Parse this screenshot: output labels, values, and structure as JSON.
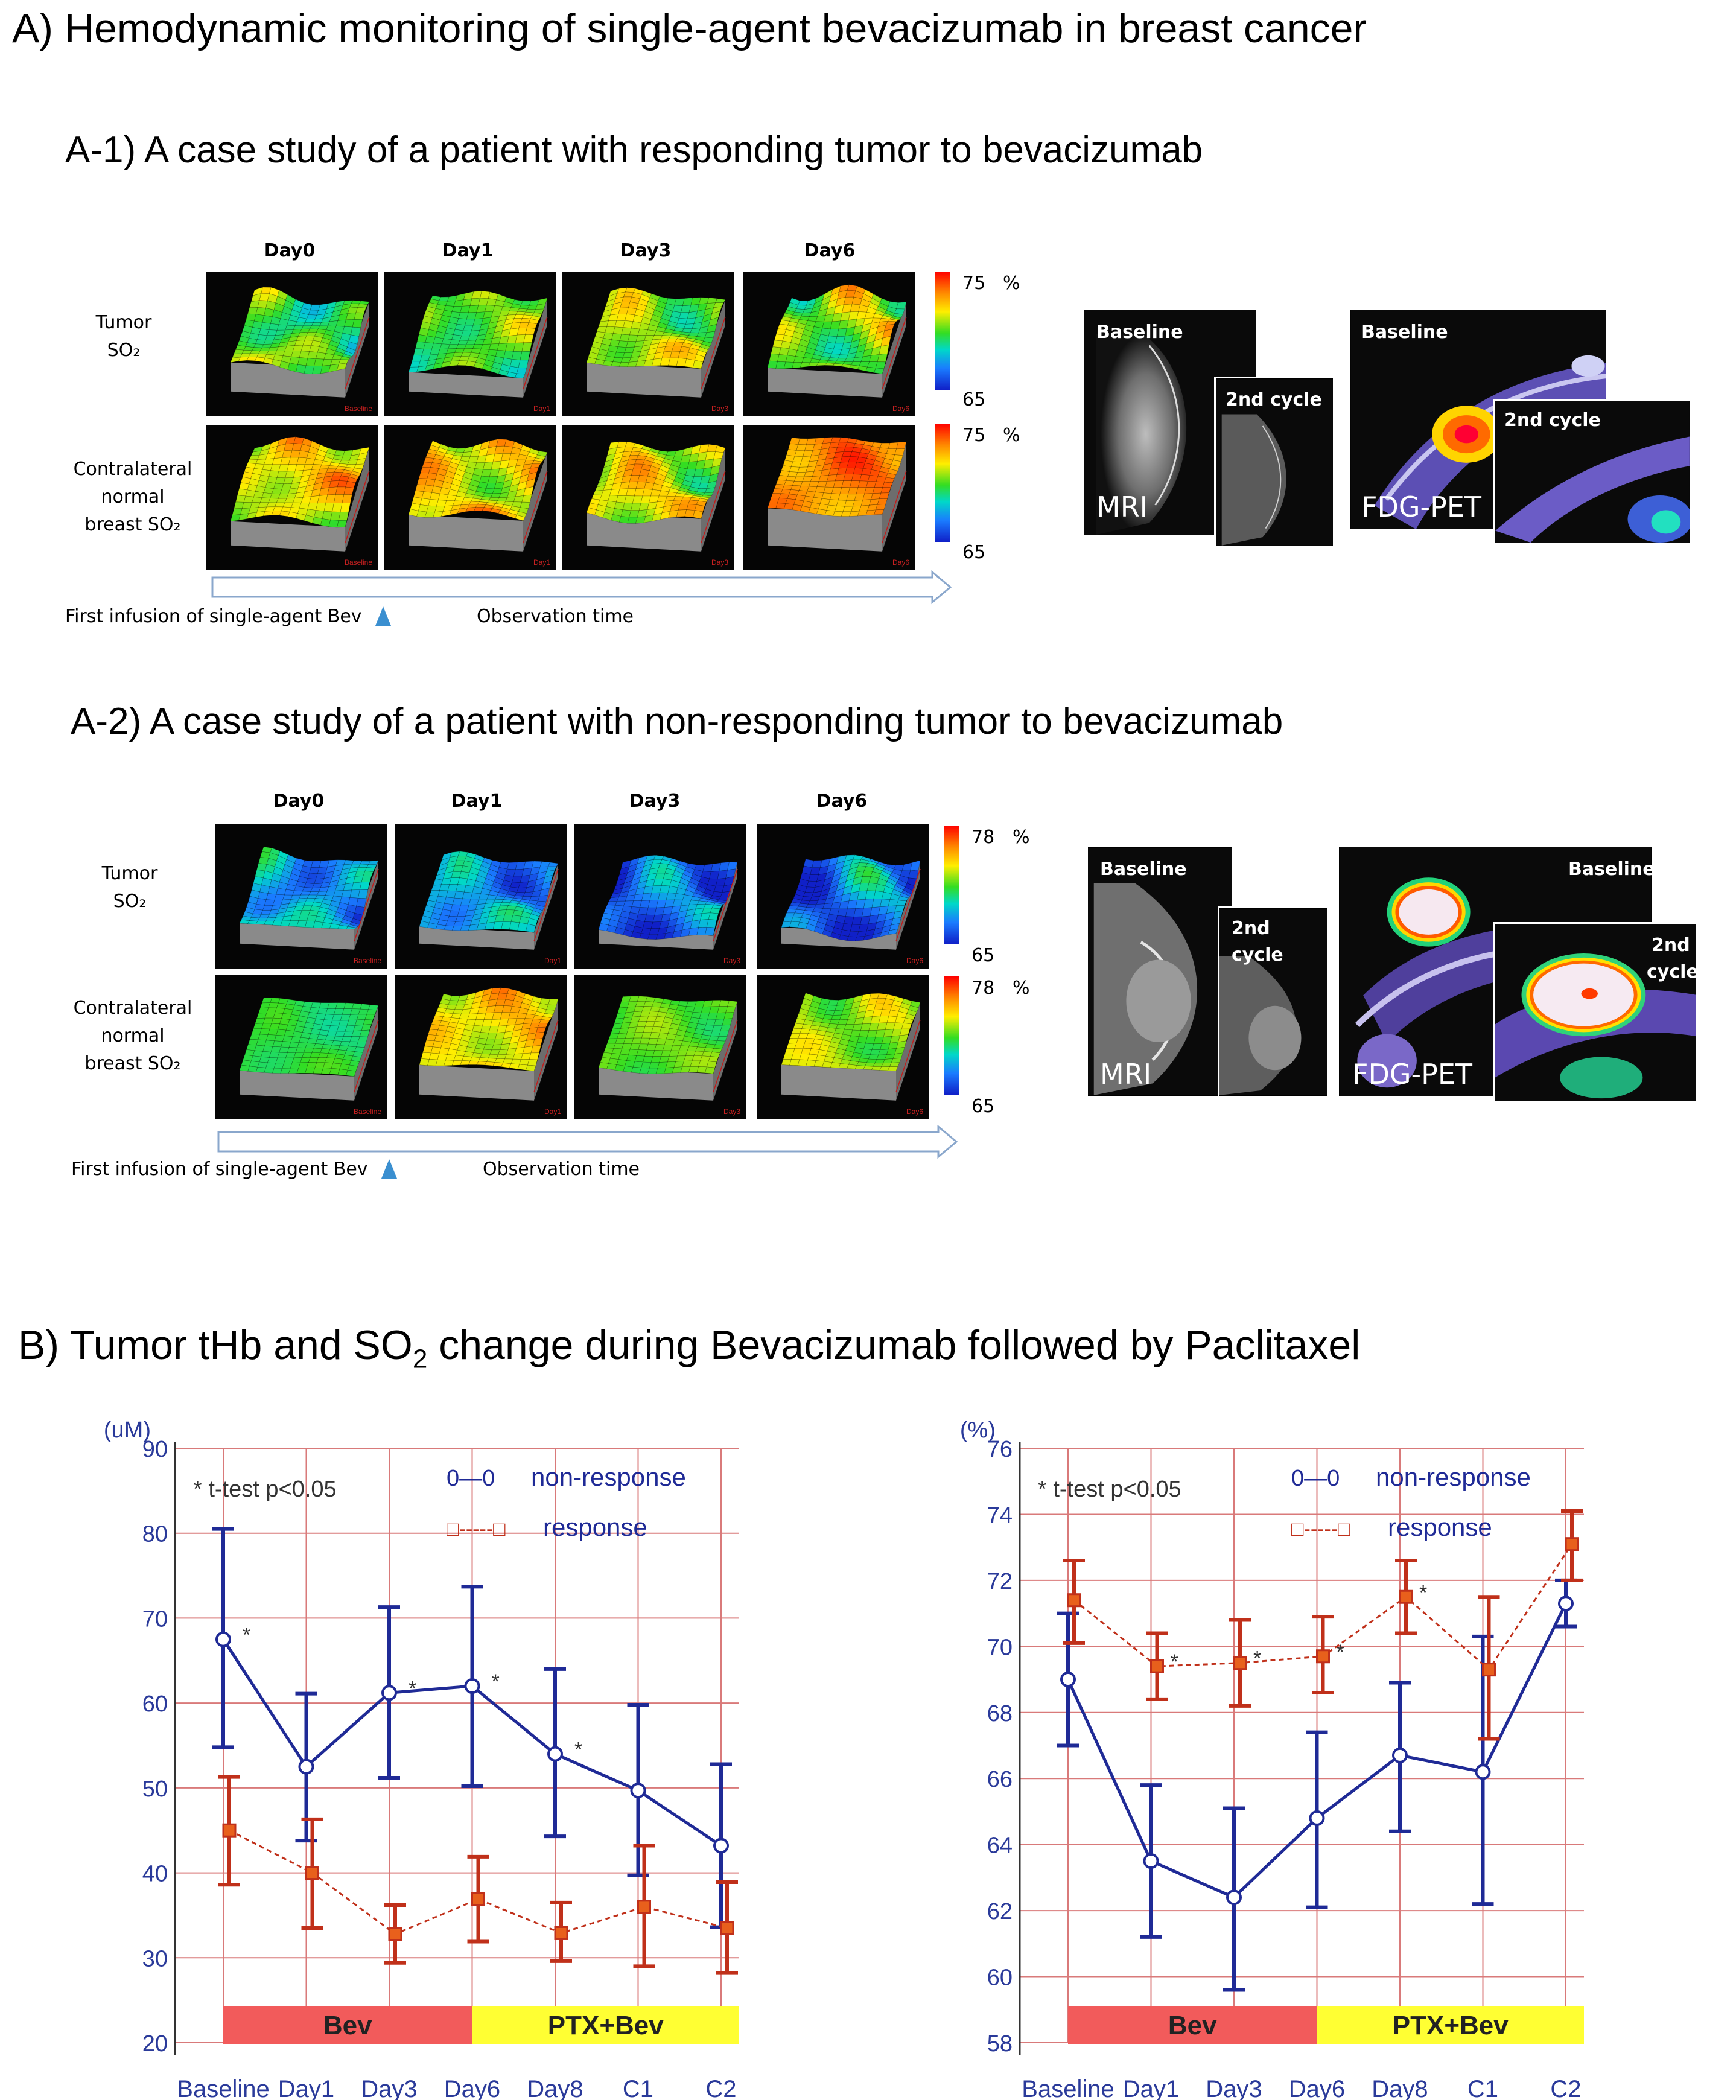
{
  "title_a": "A) Hemodynamic monitoring of single-agent bevacizumab in breast cancer",
  "panel_a1": {
    "title": "A-1) A case study of a patient with responding tumor to bevacizumab",
    "days": [
      "Day0",
      "Day1",
      "Day3",
      "Day6"
    ],
    "row1_label": [
      "Tumor",
      "SO₂"
    ],
    "row2_label": [
      "Contralateral",
      "normal",
      "breast SO₂"
    ],
    "colorbar": {
      "max": "75",
      "min": "65",
      "unit": "%"
    },
    "tile_stamps": [
      "Baseline",
      "Day1",
      "Day3",
      "Day6"
    ],
    "timeline_left": "First infusion of single-agent Bev",
    "timeline_right": "Observation time",
    "mri": {
      "baseline": "Baseline",
      "second": "2nd cycle",
      "label": "MRI"
    },
    "pet": {
      "baseline": "Baseline",
      "second": "2nd cycle",
      "label": "FDG-PET"
    }
  },
  "panel_a2": {
    "title": "A-2) A case study of a patient with non-responding tumor to bevacizumab",
    "days": [
      "Day0",
      "Day1",
      "Day3",
      "Day6"
    ],
    "row1_label": [
      "Tumor",
      "SO₂"
    ],
    "row2_label": [
      "Contralateral",
      "normal",
      "breast SO₂"
    ],
    "colorbar": {
      "max": "78",
      "min": "65",
      "unit": "%"
    },
    "tile_stamps": [
      "Baseline",
      "Day1",
      "Day3",
      "Day6"
    ],
    "timeline_left": "First infusion of single-agent Bev",
    "timeline_right": "Observation time",
    "mri": {
      "baseline": "Baseline",
      "second_1": "2nd",
      "second_2": "cycle",
      "label": "MRI"
    },
    "pet": {
      "baseline": "Baseline",
      "second_1": "2nd",
      "second_2": "cycle",
      "label": "FDG-PET"
    }
  },
  "title_b": {
    "pre": "B) Tumor tHb and SO",
    "sub": "2",
    "post": " change during Bevacizumab followed by Paclitaxel"
  },
  "colors": {
    "nonresponse": "#1f2a96",
    "response": "#c0301a",
    "grid": "#d97a7a",
    "bev": "#f25b5b",
    "ptx": "#ffff33",
    "axis_text": "#2a3a9a"
  },
  "chart_data": [
    {
      "type": "line",
      "unit_label": "(uM)",
      "annotation": "* t-test p<0.05",
      "categories": [
        "Baseline",
        "Day1",
        "Day3",
        "Day6",
        "Day8",
        "C1",
        "C2"
      ],
      "ylim": [
        20,
        90
      ],
      "yticks": [
        20,
        30,
        40,
        50,
        60,
        70,
        80,
        90
      ],
      "series": [
        {
          "name": "non-response",
          "legend_marker": "0—0",
          "values": [
            67.5,
            52.5,
            61.2,
            62.0,
            54.0,
            49.7,
            43.2
          ],
          "err_low": [
            54.8,
            43.8,
            51.2,
            50.2,
            44.3,
            39.7,
            33.6
          ],
          "err_high": [
            80.5,
            61.1,
            71.3,
            73.7,
            64.0,
            59.8,
            52.8
          ]
        },
        {
          "name": "response",
          "legend_marker": "□-----□",
          "values": [
            45.0,
            40.0,
            32.8,
            36.9,
            32.9,
            36.0,
            33.5
          ],
          "err_low": [
            38.6,
            33.5,
            29.4,
            31.9,
            29.6,
            29.0,
            28.2
          ],
          "err_high": [
            51.3,
            46.3,
            36.2,
            41.9,
            36.5,
            43.2,
            38.9
          ]
        }
      ],
      "significance": [
        "*",
        "",
        "*",
        "*",
        "*",
        "",
        ""
      ],
      "phases": [
        {
          "label": "Bev",
          "from": "Baseline",
          "to": "Day6"
        },
        {
          "label": "PTX+Bev",
          "from": "Day6",
          "to": "C2"
        }
      ]
    },
    {
      "type": "line",
      "unit_label": "(%)",
      "annotation": "* t-test p<0.05",
      "categories": [
        "Baseline",
        "Day1",
        "Day3",
        "Day6",
        "Day8",
        "C1",
        "C2"
      ],
      "ylim": [
        58,
        76
      ],
      "yticks": [
        58,
        60,
        62,
        64,
        66,
        68,
        70,
        72,
        74,
        76
      ],
      "series": [
        {
          "name": "non-response",
          "legend_marker": "0—0",
          "values": [
            69.0,
            63.5,
            62.4,
            64.8,
            66.7,
            66.2,
            71.3
          ],
          "err_low": [
            67.0,
            61.2,
            59.6,
            62.1,
            64.4,
            62.2,
            70.6
          ],
          "err_high": [
            71.0,
            65.8,
            65.1,
            67.4,
            68.9,
            70.3,
            72.0
          ]
        },
        {
          "name": "response",
          "legend_marker": "□-----□",
          "values": [
            71.4,
            69.4,
            69.5,
            69.7,
            71.5,
            69.3,
            73.1
          ],
          "err_low": [
            70.1,
            68.4,
            68.2,
            68.6,
            70.4,
            67.2,
            72.0
          ],
          "err_high": [
            72.6,
            70.4,
            70.8,
            70.9,
            72.6,
            71.5,
            74.1
          ]
        }
      ],
      "significance": [
        "",
        "*",
        "*",
        "*",
        "*",
        "",
        ""
      ],
      "phases": [
        {
          "label": "Bev",
          "from": "Baseline",
          "to": "Day6"
        },
        {
          "label": "PTX+Bev",
          "from": "Day6",
          "to": "C2"
        }
      ]
    }
  ]
}
